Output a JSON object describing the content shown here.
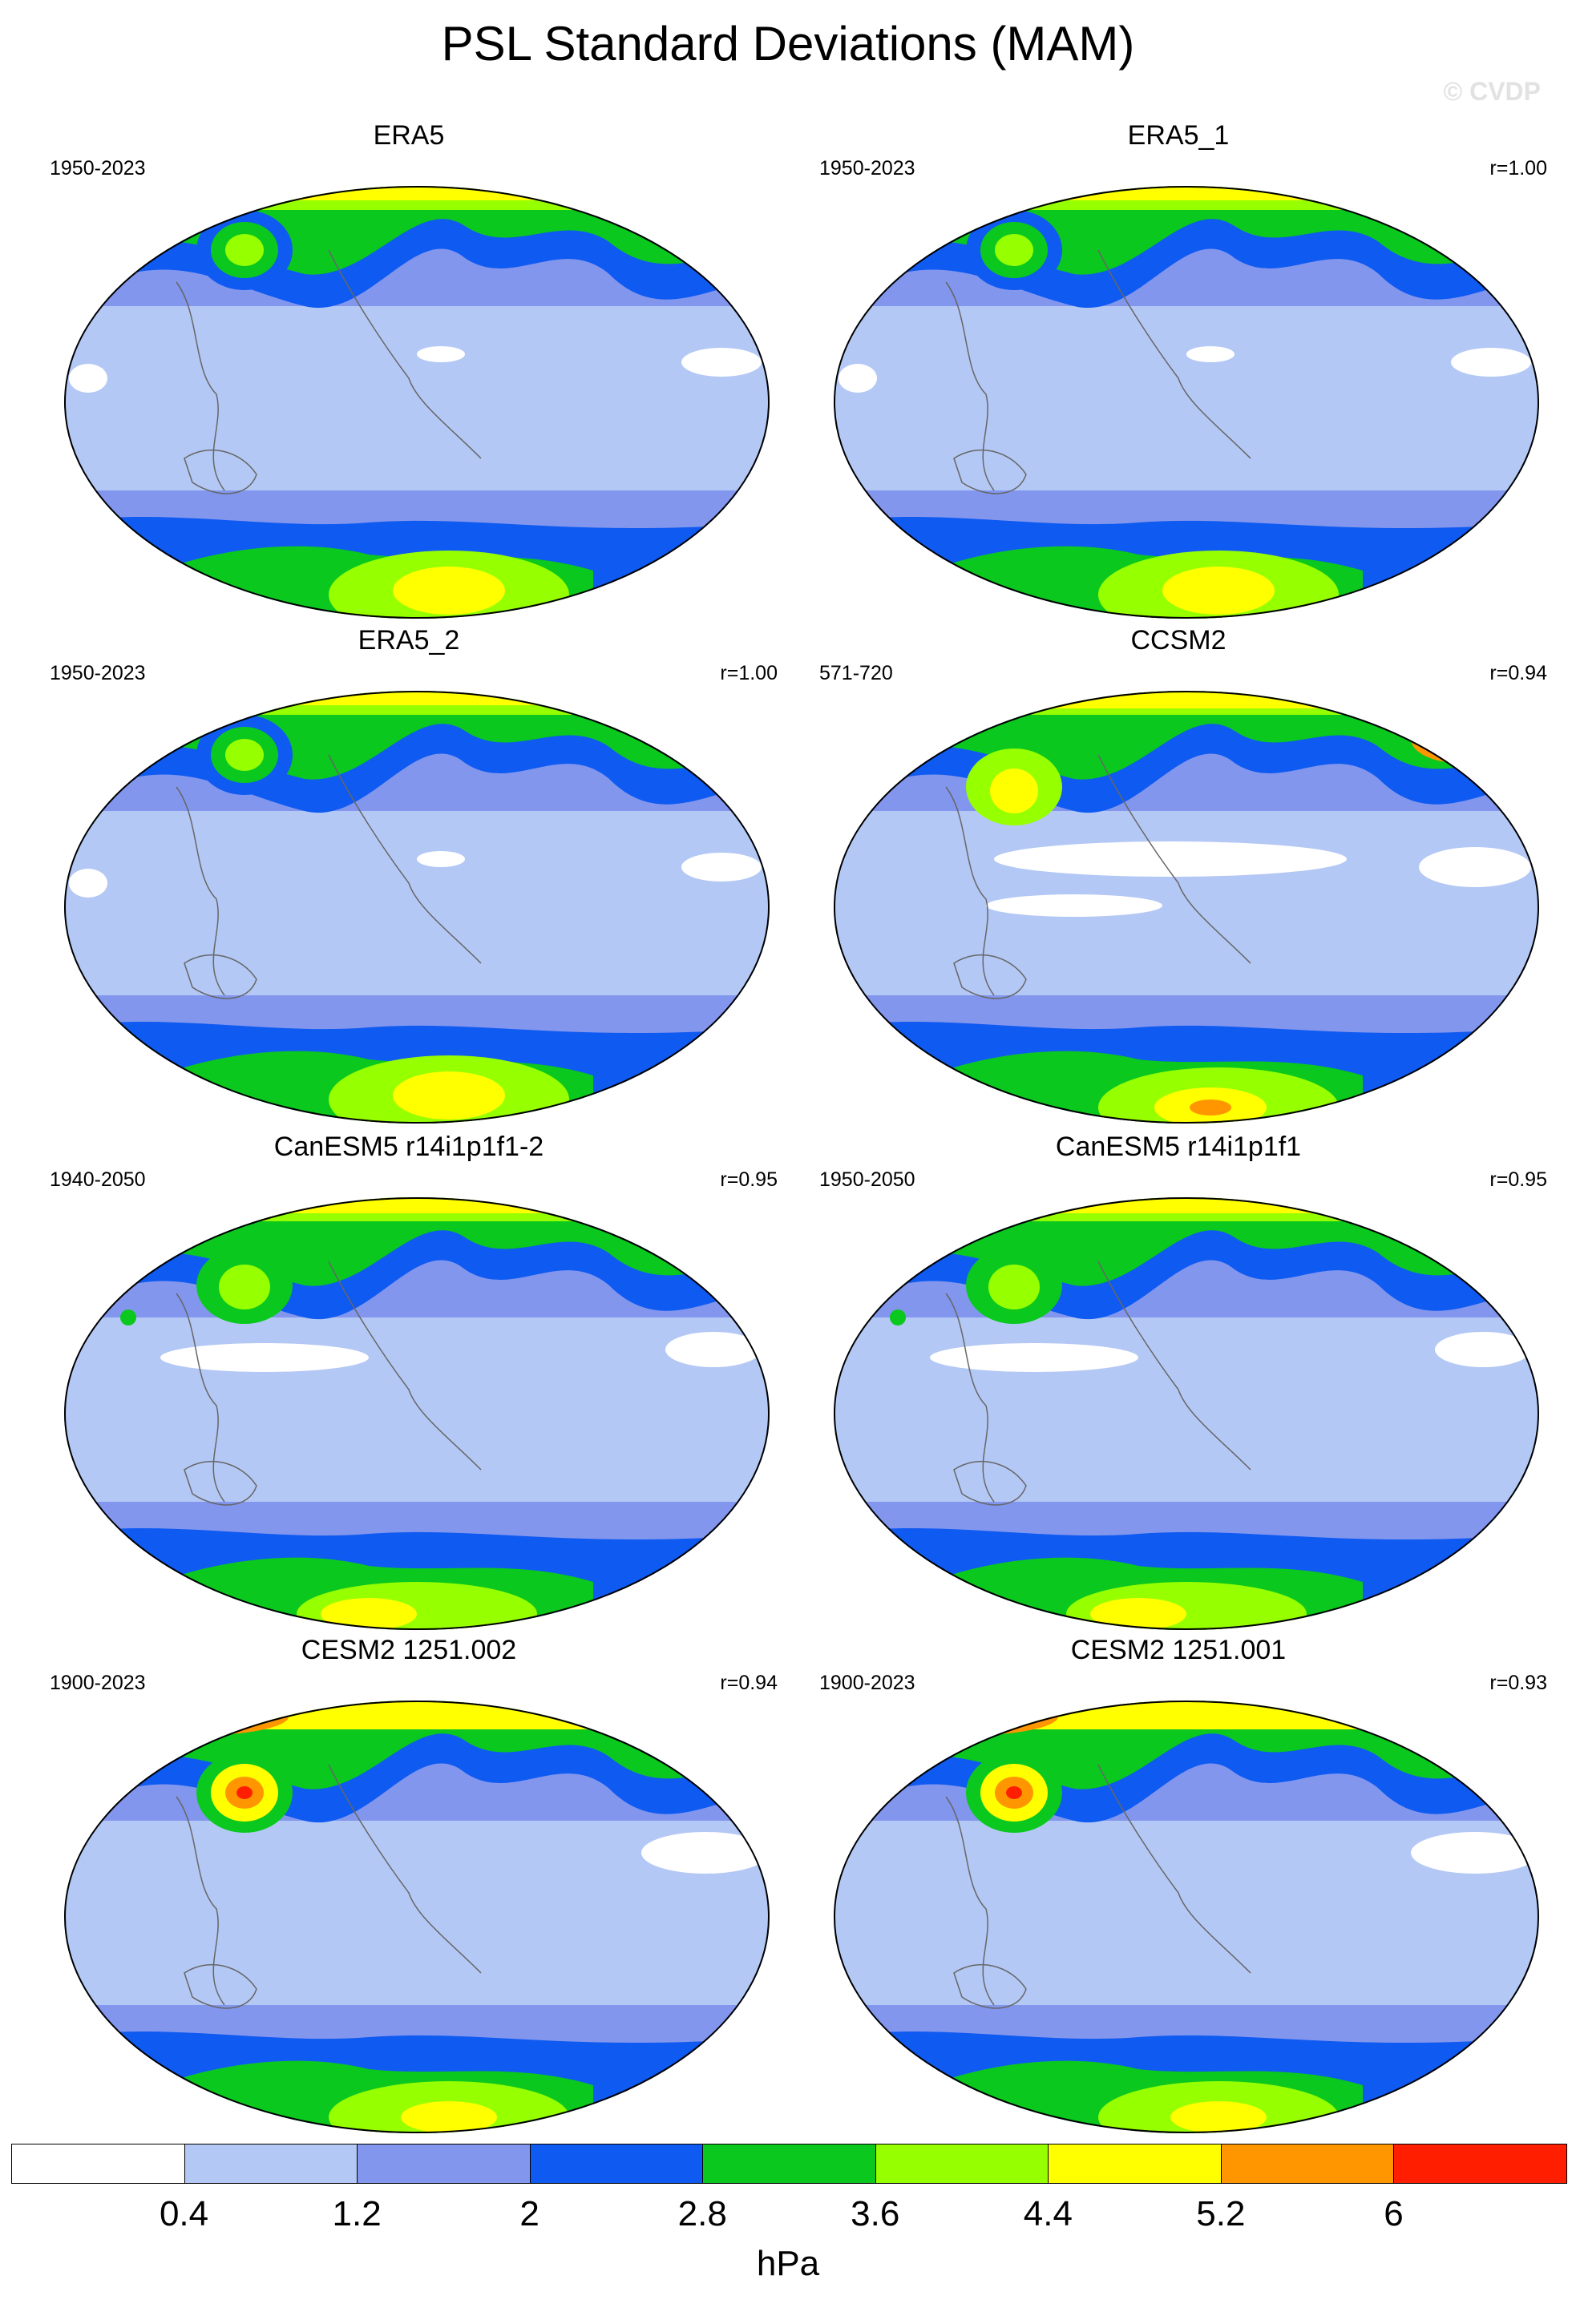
{
  "title": "PSL Standard Deviations (MAM)",
  "watermark": "© CVDP",
  "panels": [
    {
      "title": "ERA5",
      "years": "1950-2023",
      "corr": "",
      "variant": 0
    },
    {
      "title": "ERA5_1",
      "years": "1950-2023",
      "corr": "r=1.00",
      "variant": 0
    },
    {
      "title": "ERA5_2",
      "years": "1950-2023",
      "corr": "r=1.00",
      "variant": 0
    },
    {
      "title": "CCSM2",
      "years": "571-720",
      "corr": "r=0.94",
      "variant": 1
    },
    {
      "title": "CanESM5 r14i1p1f1-2",
      "years": "1940-2050",
      "corr": "r=0.95",
      "variant": 2
    },
    {
      "title": "CanESM5 r14i1p1f1",
      "years": "1950-2050",
      "corr": "r=0.95",
      "variant": 2
    },
    {
      "title": "CESM2 1251.002",
      "years": "1900-2023",
      "corr": "r=0.94",
      "variant": 3
    },
    {
      "title": "CESM2 1251.001",
      "years": "1900-2023",
      "corr": "r=0.93",
      "variant": 3
    }
  ],
  "colorbar": {
    "colors": [
      "#ffffff",
      "#b4c8f5",
      "#8296ee",
      "#0f5af0",
      "#0ac81e",
      "#96ff00",
      "#ffff00",
      "#ff9600",
      "#ff1e00"
    ],
    "ticks": [
      "0.4",
      "1.2",
      "2",
      "2.8",
      "3.6",
      "4.4",
      "5.2",
      "6"
    ],
    "units": "hPa"
  }
}
